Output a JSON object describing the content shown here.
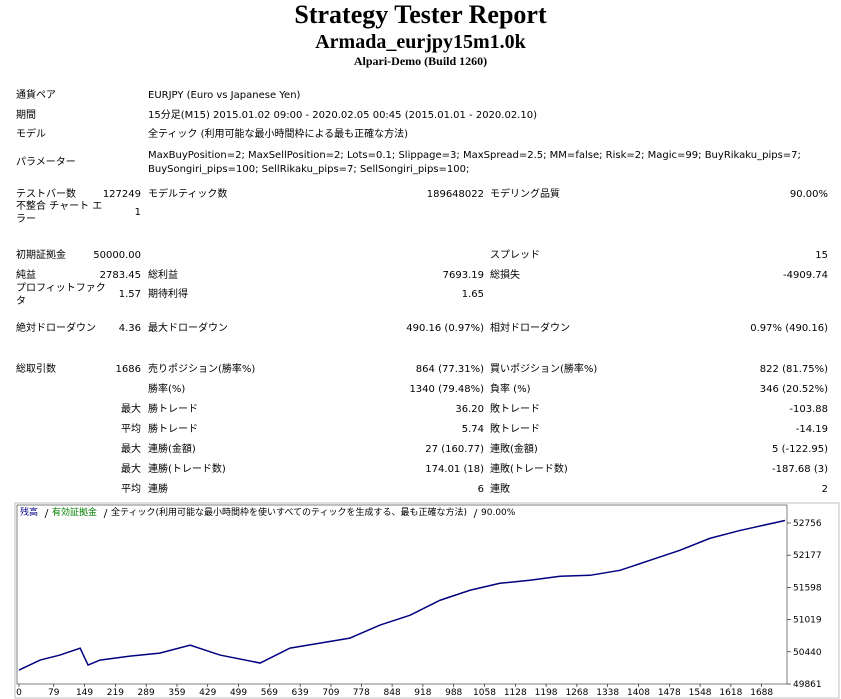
{
  "header": {
    "title": "Strategy Tester Report",
    "subtitle": "Armada_eurjpy15m1.0k",
    "build": "Alpari-Demo (Build 1260)"
  },
  "table": {
    "info_rows": [
      {
        "label": "通貨ペア",
        "value": [
          "EURJPY (Euro vs Japanese Yen)"
        ]
      },
      {
        "label": "期間",
        "value": [
          "15分足(M15) 2015.01.02 09:00 - 2020.02.05 00:45 (2015.01.01 - 2020.02.10)"
        ]
      },
      {
        "label": "モデル",
        "value": [
          "全ティック (利用可能な最小時間枠による最も正確な方法)"
        ]
      },
      {
        "label": "パラメーター",
        "value": [
          "MaxBuyPosition=2; MaxSellPosition=2; Lots=0.1; Slippage=3; MaxSpread=2.5; MM=false; Risk=2; Magic=99; BuyRikaku_pips=7;",
          "BuySongiri_pips=100; SellRikaku_pips=7; SellSongiri_pips=100;"
        ]
      }
    ],
    "stat_rows": [
      [
        "テストバー数",
        "127249",
        "モデルティック数",
        "189648022",
        "モデリング品質",
        "90.00%"
      ],
      [
        "不整合 チャート エラー",
        "1",
        null,
        null,
        null,
        null
      ],
      [
        "初期証拠金",
        "50000.00",
        null,
        null,
        "スプレッド",
        "15"
      ],
      [
        "純益",
        "2783.45",
        "総利益",
        "7693.19",
        "総損失",
        "-4909.74"
      ],
      [
        "プロフィットファクタ",
        "1.57",
        "期待利得",
        "1.65",
        null,
        null
      ],
      [
        "絶対ドローダウン",
        "4.36",
        "最大ドローダウン",
        "490.16 (0.97%)",
        "相対ドローダウン",
        "0.97% (490.16)"
      ],
      [
        "総取引数",
        "1686",
        "売りポジション(勝率%)",
        "864 (77.31%)",
        "買いポジション(勝率%)",
        "822 (81.75%)"
      ],
      [
        null,
        null,
        "勝率(%)",
        "1340 (79.48%)",
        "負率 (%)",
        "346 (20.52%)"
      ],
      [
        null,
        "最大",
        "勝トレード",
        "36.20",
        "敗トレード",
        "-103.88"
      ],
      [
        null,
        "平均",
        "勝トレード",
        "5.74",
        "敗トレード",
        "-14.19"
      ],
      [
        null,
        "最大",
        "連勝(金額)",
        "27 (160.77)",
        "連敗(金額)",
        "5 (-122.95)"
      ],
      [
        null,
        "最大",
        "連勝(トレード数)",
        "174.01 (18)",
        "連敗(トレード数)",
        "-187.68 (3)"
      ],
      [
        null,
        "平均",
        "連勝",
        "6",
        "連敗",
        "2"
      ]
    ]
  },
  "chart_data": {
    "type": "line",
    "equity_label": "有効証拠金",
    "equity_color": "#008000",
    "model_note": "全ティック(利用可能な最小時間枠を使いすべてのティックを生成する、最も正確な方法)",
    "quality": "90.00%",
    "x": [
      0,
      48,
      93,
      139,
      157,
      184,
      252,
      320,
      389,
      457,
      548,
      616,
      684,
      752,
      820,
      889,
      957,
      1025,
      1093,
      1161,
      1230,
      1298,
      1366,
      1434,
      1502,
      1570,
      1639,
      1741
    ],
    "series": [
      {
        "name": "残高",
        "color": "#000080",
        "values": [
          50112,
          50291,
          50381,
          50506,
          50202,
          50291,
          50363,
          50417,
          50560,
          50381,
          50238,
          50506,
          50596,
          50686,
          50919,
          51098,
          51367,
          51546,
          51672,
          51726,
          51797,
          51815,
          51905,
          52084,
          52264,
          52479,
          52622,
          52801
        ]
      }
    ],
    "xlim": [
      0,
      1741
    ],
    "xticks": [
      0,
      79,
      149,
      219,
      289,
      359,
      429,
      499,
      569,
      639,
      709,
      778,
      848,
      918,
      988,
      1058,
      1128,
      1198,
      1268,
      1338,
      1408,
      1478,
      1548,
      1618,
      1688
    ],
    "ylim": [
      49861,
      53079
    ],
    "yticks": [
      49861,
      50440,
      51019,
      51598,
      52177,
      52756
    ]
  }
}
